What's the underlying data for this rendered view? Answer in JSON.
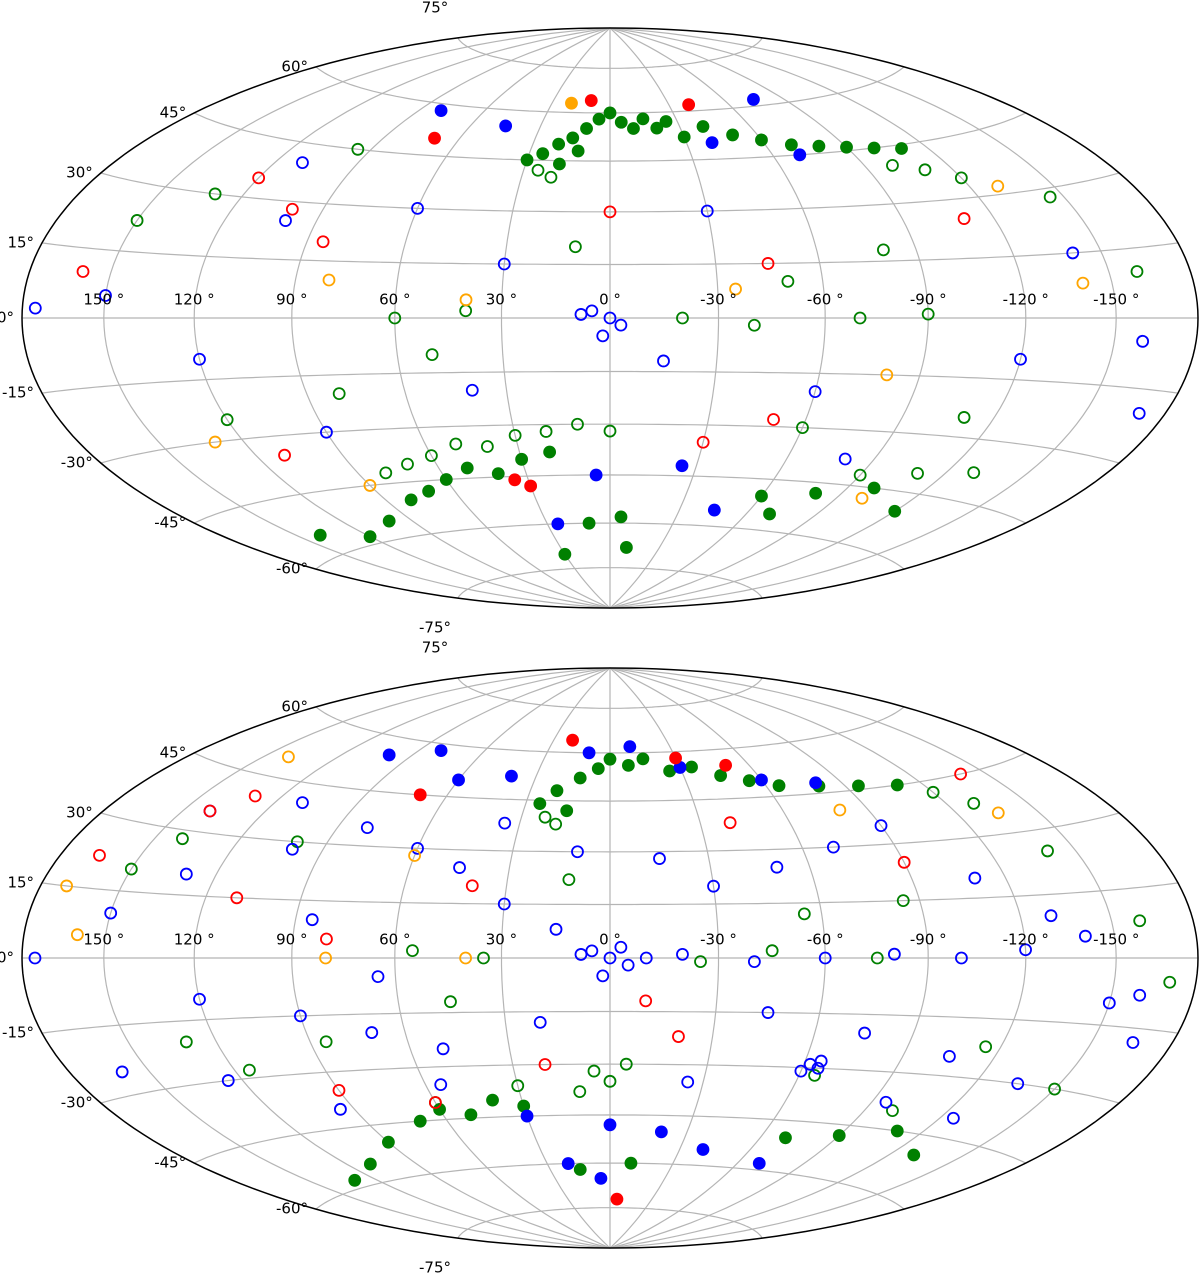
{
  "chart_data": [
    {
      "type": "scatter",
      "projection": "hammer",
      "grid": true,
      "xlim": [
        180,
        -180
      ],
      "ylim": [
        -90,
        90
      ],
      "xticks": [
        {
          "value": 150,
          "label": "150 °"
        },
        {
          "value": 120,
          "label": "120 °"
        },
        {
          "value": 90,
          "label": "90 °"
        },
        {
          "value": 60,
          "label": "60 °"
        },
        {
          "value": 30,
          "label": "30 °"
        },
        {
          "value": 0,
          "label": "0 °"
        },
        {
          "value": -30,
          "label": "-30 °"
        },
        {
          "value": -60,
          "label": "-60 °"
        },
        {
          "value": -90,
          "label": "-90 °"
        },
        {
          "value": -120,
          "label": "-120 °"
        },
        {
          "value": -150,
          "label": "-150 °"
        }
      ],
      "yticks": [
        {
          "value": -75,
          "label": "-75°"
        },
        {
          "value": -60,
          "label": "-60°"
        },
        {
          "value": -45,
          "label": "-45°"
        },
        {
          "value": -30,
          "label": "-30°"
        },
        {
          "value": -15,
          "label": "-15°"
        },
        {
          "value": 0,
          "label": "0°"
        },
        {
          "value": 15,
          "label": "15°"
        },
        {
          "value": 30,
          "label": "30°"
        },
        {
          "value": 45,
          "label": "45°"
        },
        {
          "value": 60,
          "label": "60°"
        },
        {
          "value": 75,
          "label": "75°"
        }
      ],
      "series": [
        {
          "color": "#008000",
          "filled": true,
          "x": [
            20,
            15,
            10,
            5,
            0,
            -5,
            -10,
            -15,
            -20,
            -25,
            -30,
            -40,
            -50,
            -60,
            -70,
            -80,
            -90,
            -100,
            -110,
            25,
            30,
            18,
            12,
            60,
            50,
            40,
            30,
            20,
            70,
            80,
            100,
            120,
            140,
            -60,
            -80,
            -100,
            -120,
            -70,
            10,
            -5,
            30,
            -10
          ],
          "y": [
            50,
            52,
            55,
            58,
            60,
            57,
            55,
            58,
            55,
            57,
            52,
            55,
            52,
            50,
            48,
            47,
            46,
            45,
            44,
            47,
            45,
            44,
            48,
            -45,
            -42,
            -44,
            -40,
            -38,
            -48,
            -50,
            -55,
            -58,
            -55,
            -50,
            -48,
            -45,
            -50,
            -55,
            -60,
            -58,
            -70,
            -68
          ]
        },
        {
          "color": "#008000",
          "filled": false,
          "x": [
            20,
            25,
            -100,
            -110,
            -120,
            95,
            130,
            150,
            -145,
            -160,
            60,
            40,
            -20,
            -40,
            -70,
            -90,
            80,
            120,
            -50,
            -80,
            10,
            -60,
            -110,
            50,
            70,
            60,
            50,
            40,
            30,
            20,
            10,
            0,
            80,
            -90,
            -110,
            -130
          ],
          "y": [
            40,
            42,
            40,
            38,
            35,
            45,
            30,
            22,
            28,
            10,
            0,
            2,
            0,
            -2,
            0,
            1,
            -20,
            -25,
            10,
            18,
            20,
            -30,
            -25,
            -10,
            -40,
            -38,
            -35,
            -36,
            -33,
            -32,
            -30,
            -32,
            -42,
            -42,
            -40,
            -38
          ]
        },
        {
          "color": "#0000ff",
          "filled": true,
          "x": [
            80,
            45,
            -70,
            -40,
            -75,
            5,
            25,
            -25,
            -45
          ],
          "y": [
            58,
            55,
            45,
            50,
            62,
            -45,
            -60,
            -42,
            -55
          ]
        },
        {
          "color": "#0000ff",
          "filled": false,
          "x": [
            150,
            175,
            100,
            60,
            30,
            0,
            5,
            -3,
            2,
            8,
            -120,
            -140,
            -160,
            -60,
            -80,
            120,
            90,
            40,
            -30,
            -170,
            110,
            -15
          ],
          "y": [
            5,
            2,
            25,
            30,
            15,
            0,
            2,
            -2,
            -5,
            1,
            -10,
            15,
            -5,
            -20,
            -38,
            -10,
            -30,
            -20,
            30,
            -20,
            40,
            -12
          ]
        },
        {
          "color": "#ff0000",
          "filled": true,
          "x": [
            10,
            -40,
            70,
            30,
            35
          ],
          "y": [
            64,
            62,
            50,
            -48,
            -46
          ]
        },
        {
          "color": "#ff0000",
          "filled": false,
          "x": [
            100,
            120,
            160,
            85,
            0,
            -45,
            -50,
            -30,
            -110,
            110
          ],
          "y": [
            28,
            35,
            10,
            20,
            30,
            15,
            -28,
            -35,
            25,
            -35
          ]
        },
        {
          "color": "#ffa500",
          "filled": true,
          "x": [
            20
          ],
          "y": [
            63
          ]
        },
        {
          "color": "#ffa500",
          "filled": false,
          "x": [
            80,
            40,
            -35,
            -80,
            -130,
            -140,
            130,
            90,
            -100
          ],
          "y": [
            10,
            5,
            8,
            -15,
            32,
            8,
            -30,
            -45,
            -48
          ]
        }
      ]
    },
    {
      "type": "scatter",
      "projection": "hammer",
      "grid": true,
      "xlim": [
        180,
        -180
      ],
      "ylim": [
        -90,
        90
      ],
      "xticks": [
        {
          "value": 150,
          "label": "150 °"
        },
        {
          "value": 120,
          "label": "120 °"
        },
        {
          "value": 90,
          "label": "90 °"
        },
        {
          "value": 60,
          "label": "60 °"
        },
        {
          "value": 30,
          "label": "30 °"
        },
        {
          "value": 0,
          "label": "0 °"
        },
        {
          "value": -30,
          "label": "-30 °"
        },
        {
          "value": -60,
          "label": "-60 °"
        },
        {
          "value": -90,
          "label": "-90 °"
        },
        {
          "value": -120,
          "label": "-120 °"
        },
        {
          "value": -150,
          "label": "-150 °"
        }
      ],
      "yticks": [
        {
          "value": -75,
          "label": "-75°"
        },
        {
          "value": -60,
          "label": "-60°"
        },
        {
          "value": -45,
          "label": "-45°"
        },
        {
          "value": -30,
          "label": "-30°"
        },
        {
          "value": -15,
          "label": "-15°"
        },
        {
          "value": 0,
          "label": "0°"
        },
        {
          "value": 15,
          "label": "15°"
        },
        {
          "value": 30,
          "label": "30°"
        },
        {
          "value": 45,
          "label": "45°"
        },
        {
          "value": 60,
          "label": "60°"
        },
        {
          "value": 75,
          "label": "75°"
        }
      ],
      "series": [
        {
          "color": "#008000",
          "filled": true,
          "x": [
            20,
            12,
            5,
            0,
            -8,
            -15,
            -25,
            -35,
            -45,
            -55,
            -65,
            -80,
            -95,
            -110,
            25,
            15,
            70,
            60,
            50,
            40,
            30,
            90,
            110,
            130,
            -70,
            -90,
            -110,
            -130,
            15,
            -10
          ],
          "y": [
            48,
            52,
            55,
            58,
            56,
            58,
            54,
            55,
            52,
            50,
            48,
            47,
            46,
            45,
            44,
            42,
            -45,
            -42,
            -44,
            -40,
            -42,
            -50,
            -55,
            -58,
            -50,
            -48,
            -45,
            -50,
            -62,
            -60
          ]
        },
        {
          "color": "#008000",
          "filled": false,
          "x": [
            22,
            18,
            -120,
            -130,
            140,
            150,
            -140,
            -160,
            55,
            35,
            -25,
            -45,
            -75,
            85,
            115,
            -55,
            -85,
            12,
            -65,
            -115,
            45,
            5,
            0,
            -5,
            10,
            60,
            30,
            -100,
            -150,
            100,
            130,
            -170
          ],
          "y": [
            40,
            38,
            42,
            38,
            28,
            20,
            25,
            8,
            2,
            0,
            -1,
            2,
            0,
            -22,
            -28,
            12,
            15,
            22,
            -32,
            -22,
            -12,
            -32,
            -35,
            -30,
            -38,
            -40,
            -36,
            -40,
            -30,
            30,
            -20,
            -5
          ]
        },
        {
          "color": "#0000ff",
          "filled": true,
          "x": [
            100,
            80,
            60,
            40,
            10,
            -10,
            -30,
            -60,
            -80,
            30,
            0,
            -20,
            5,
            -40,
            -70,
            20
          ],
          "y": [
            55,
            58,
            50,
            52,
            60,
            62,
            55,
            50,
            48,
            -45,
            -48,
            -50,
            -65,
            -55,
            -58,
            -60
          ]
        },
        {
          "color": "#0000ff",
          "filled": false,
          "x": [
            175,
            150,
            130,
            100,
            80,
            60,
            45,
            30,
            15,
            0,
            5,
            -5,
            2,
            -3,
            8,
            -10,
            -20,
            -40,
            -60,
            -80,
            -100,
            -120,
            -140,
            -160,
            120,
            90,
            70,
            50,
            20,
            -30,
            -50,
            -70,
            -90,
            -110,
            -130,
            -150,
            140,
            110,
            85,
            65,
            35,
            10,
            -15,
            -45,
            -75,
            -105,
            -135,
            -165,
            160,
            125,
            95,
            55,
            -25,
            -65,
            -95,
            -125,
            -65,
            -60,
            -62
          ],
          "y": [
            0,
            10,
            20,
            28,
            35,
            30,
            25,
            15,
            8,
            0,
            2,
            -2,
            -5,
            3,
            1,
            0,
            1,
            -1,
            0,
            1,
            0,
            2,
            5,
            -8,
            -10,
            -15,
            -20,
            -25,
            -18,
            20,
            25,
            30,
            35,
            20,
            10,
            -10,
            35,
            40,
            10,
            -5,
            38,
            30,
            28,
            -15,
            -20,
            -25,
            -30,
            -18,
            -25,
            -30,
            -40,
            -35,
            -35,
            -28,
            -38,
            -40,
            -30,
            -31,
            -29
          ]
        },
        {
          "color": "#ff0000",
          "filled": true,
          "x": [
            20,
            -30,
            -50,
            70,
            -5
          ],
          "y": [
            64,
            58,
            55,
            45,
            -72
          ]
        },
        {
          "color": "#ff0000",
          "filled": false,
          "x": [
            130,
            140,
            165,
            110,
            80,
            40,
            -10,
            -40,
            -90,
            -140,
            90,
            60,
            20,
            -20
          ],
          "y": [
            40,
            35,
            22,
            15,
            5,
            20,
            -12,
            38,
            25,
            45,
            -35,
            -40,
            -30,
            -22
          ]
        },
        {
          "color": "#ffa500",
          "filled": false,
          "x": [
            170,
            160,
            140,
            80,
            -80,
            -135,
            60,
            40
          ],
          "y": [
            15,
            5,
            50,
            0,
            40,
            35,
            28,
            0
          ]
        }
      ]
    }
  ]
}
